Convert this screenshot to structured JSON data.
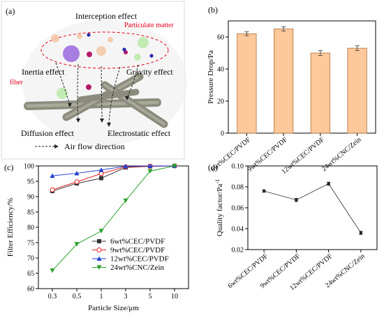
{
  "panel_a": {
    "letter": "(a)",
    "labels": {
      "interception": "Interception effect",
      "particulate": "Particulate matter",
      "inertia": "Inertia effect",
      "gravity": "Gravity effect",
      "fiber": "fiber",
      "diffusion": "Diffusion effect",
      "electrostatic": "Electrostatic effect",
      "airflow": "Air flow direction"
    },
    "colors": {
      "red_label": "#e8001c",
      "fiber": "#8c8c7e"
    }
  },
  "chart_data": [
    {
      "id": "b",
      "letter": "(b)",
      "type": "bar",
      "categories": [
        "6wt%CEC/PVDF",
        "9wt%CEC/PVDF",
        "12wt%CEC/PVDF",
        "24wt%CNC/Zein"
      ],
      "values": [
        62,
        65,
        50,
        53
      ],
      "errors": [
        1.2,
        1.3,
        1.5,
        1.5
      ],
      "xlabel": "",
      "ylabel": "Pressure Drop/Pa",
      "ylim": [
        0,
        70
      ],
      "yticks": [
        "0",
        "20",
        "40",
        "60"
      ],
      "bar_color": "#fdc89a",
      "bar_edge": "#b0703a",
      "grid": false
    },
    {
      "id": "c",
      "letter": "(c)",
      "type": "line",
      "x": [
        0.3,
        0.5,
        1,
        3,
        5,
        10
      ],
      "xticks": [
        "0.3",
        "0.5",
        "1",
        "3",
        "5",
        "10"
      ],
      "xlabel": "Particle Size/μm",
      "ylabel": "Filter Efficiency/%",
      "ylim": [
        60,
        100
      ],
      "yticks": [
        "60",
        "65",
        "70",
        "75",
        "80",
        "85",
        "90",
        "95",
        "100"
      ],
      "legend_position": "center-right",
      "series": [
        {
          "name": "6wt%CEC/PVDF",
          "values": [
            91.8,
            94.3,
            96.0,
            99.5,
            99.9,
            100
          ],
          "color": "#333333",
          "marker": "square"
        },
        {
          "name": "9wt%CEC/PVDF",
          "values": [
            92.2,
            94.8,
            97.5,
            99.7,
            99.9,
            100
          ],
          "color": "#e41a1c",
          "marker": "circle"
        },
        {
          "name": "12wt%CEC/PVDF",
          "values": [
            96.8,
            97.6,
            98.7,
            99.9,
            100,
            100
          ],
          "color": "#1f3fcf",
          "marker": "triangle-up"
        },
        {
          "name": "24wt%CNC/Zein",
          "values": [
            65.9,
            74.5,
            78.8,
            88.7,
            98.3,
            100
          ],
          "color": "#2ca02c",
          "marker": "triangle-down"
        }
      ]
    },
    {
      "id": "d",
      "letter": "(d)",
      "type": "line",
      "categories": [
        "6wt%CEC/PVDF",
        "9wt%CEC/PVDF",
        "12wt%CEC/PVDF",
        "24wt%CNC/Zein"
      ],
      "values": [
        0.076,
        0.0675,
        0.083,
        0.036
      ],
      "errors": [
        0.0012,
        0.0015,
        0.0015,
        0.0015
      ],
      "xlabel": "",
      "ylabel": "Quality factor/Pa",
      "ylabel_sup": "-1",
      "ylim": [
        0.02,
        0.1
      ],
      "yticks": [
        "0.02",
        "0.04",
        "0.06",
        "0.08",
        "0.10"
      ],
      "color": "#444444",
      "grid": false
    }
  ]
}
